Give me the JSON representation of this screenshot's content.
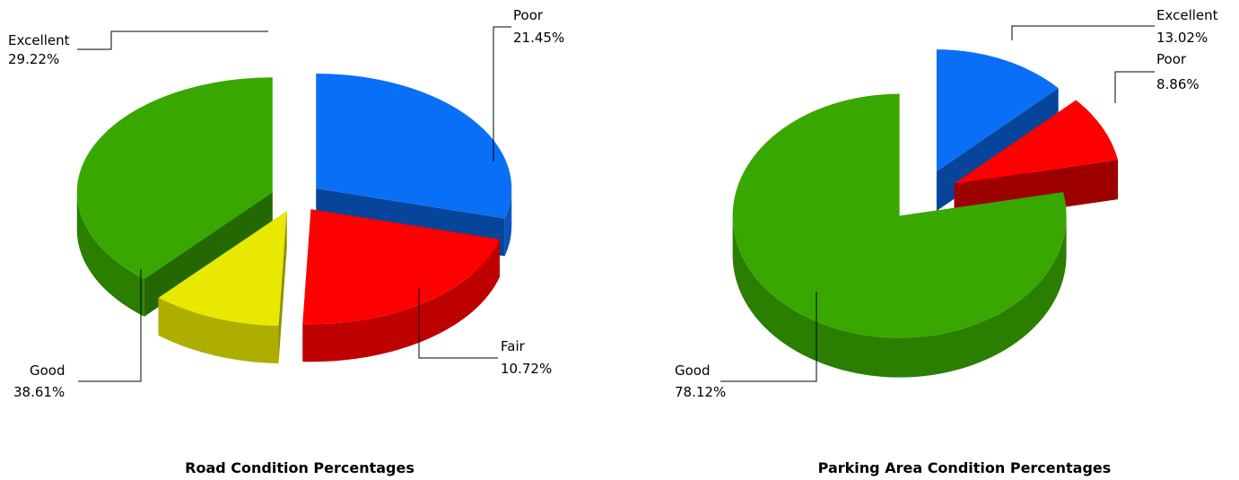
{
  "chart_data": [
    {
      "type": "pie",
      "title": "Road Condition Percentages",
      "categories": [
        "Excellent",
        "Poor",
        "Fair",
        "Good"
      ],
      "values": [
        29.22,
        21.45,
        10.72,
        38.61
      ],
      "value_labels": [
        "29.22%",
        "21.45%",
        "10.72%",
        "38.61%"
      ],
      "colors": [
        "#0a6ff7",
        "#ff0000",
        "#e8e800",
        "#38a800"
      ],
      "legend": "none",
      "style": "3d-exploded"
    },
    {
      "type": "pie",
      "title": "Parking Area Condition Percentages",
      "categories": [
        "Excellent",
        "Poor",
        "Good"
      ],
      "values": [
        13.02,
        8.86,
        78.12
      ],
      "value_labels": [
        "13.02%",
        "8.86%",
        "78.12%"
      ],
      "colors": [
        "#0a6ff7",
        "#ff0000",
        "#38a800"
      ],
      "legend": "none",
      "style": "3d-exploded"
    }
  ]
}
